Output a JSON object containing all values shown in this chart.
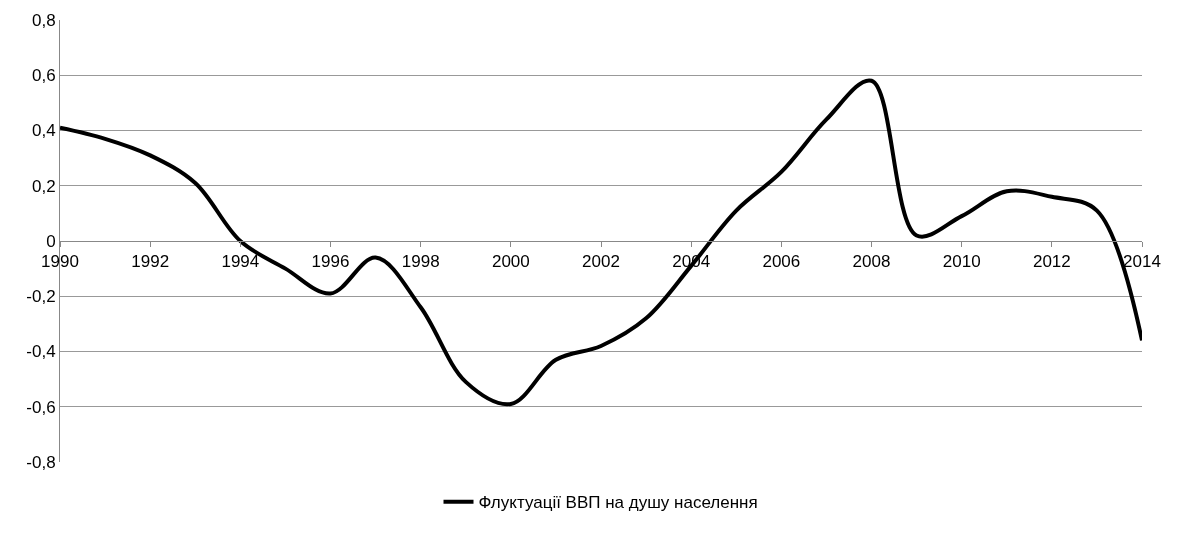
{
  "chart_data": {
    "type": "line",
    "x": [
      1990,
      1991,
      1992,
      1993,
      1994,
      1995,
      1996,
      1997,
      1998,
      1999,
      2000,
      2001,
      2002,
      2003,
      2004,
      2005,
      2006,
      2007,
      2008,
      2009,
      2010,
      2011,
      2012,
      2013,
      2014
    ],
    "series": [
      {
        "name": "Флуктуації ВВП на душу населення",
        "color": "#000000",
        "values": [
          0.41,
          0.37,
          0.31,
          0.21,
          0.0,
          -0.1,
          -0.19,
          -0.06,
          -0.24,
          -0.51,
          -0.59,
          -0.43,
          -0.38,
          -0.28,
          -0.09,
          0.11,
          0.25,
          0.44,
          0.58,
          0.02,
          0.09,
          0.18,
          0.16,
          0.11,
          -0.36
        ]
      }
    ],
    "xlim": [
      1990,
      2014
    ],
    "xticks": [
      1990,
      1992,
      1994,
      1996,
      1998,
      2000,
      2002,
      2004,
      2006,
      2008,
      2010,
      2012,
      2014
    ],
    "ylim": [
      -0.8,
      0.8
    ],
    "yticks": [
      {
        "value": -0.8,
        "label": "-0,8"
      },
      {
        "value": -0.6,
        "label": "-0,6"
      },
      {
        "value": -0.4,
        "label": "-0,4"
      },
      {
        "value": -0.2,
        "label": "-0,2"
      },
      0,
      {
        "value": 0.2,
        "label": "0,2"
      },
      {
        "value": 0.4,
        "label": "0,4"
      },
      {
        "value": 0.6,
        "label": "0,6"
      },
      {
        "value": 0.8,
        "label": "0,8"
      }
    ],
    "grid": "y",
    "legend": "bottom",
    "marker": "none",
    "line_style": "solid"
  }
}
